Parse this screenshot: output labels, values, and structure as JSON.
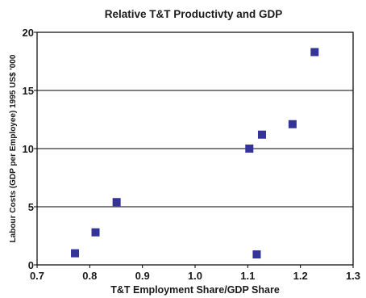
{
  "chart_data": {
    "type": "scatter",
    "title": "Relative T&T Productivty and GDP",
    "xlabel": "T&T Employment Share/GDP Share",
    "ylabel": "Labour Costs (GDP per Employee) 1995 US$ '000",
    "xlim": [
      0.7,
      1.3
    ],
    "ylim": [
      0,
      20
    ],
    "x_ticks": [
      "0.7",
      "0.8",
      "0.9",
      "1.0",
      "1.1",
      "1.2",
      "1.3"
    ],
    "y_ticks": [
      "0",
      "5",
      "10",
      "15",
      "20"
    ],
    "grid": "horizontal",
    "marker_color": "#333399",
    "series": [
      {
        "x": [
          0.772,
          0.811,
          0.851,
          1.103,
          1.117,
          1.127,
          1.185,
          1.227
        ],
        "y": [
          1.0,
          2.8,
          5.4,
          10.0,
          0.9,
          11.2,
          12.1,
          18.3
        ]
      }
    ]
  }
}
